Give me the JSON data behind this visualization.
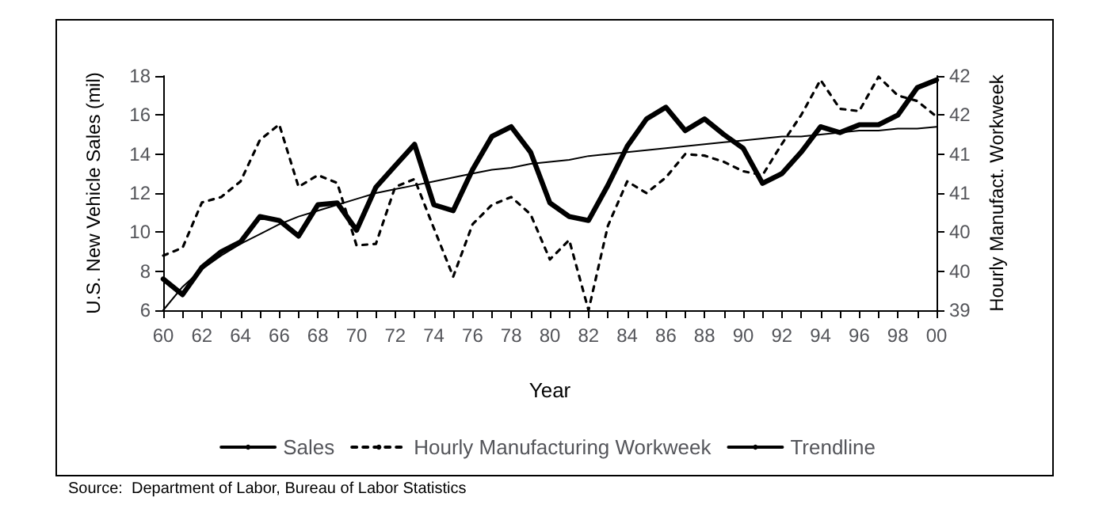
{
  "chart_data": {
    "type": "line",
    "xlabel": "Year",
    "ylabel": "U.S. New Vehicle Sales (mil)",
    "y2label": "Hourly Manufact. Workweek",
    "categories": [
      "60",
      null,
      "62",
      null,
      "64",
      null,
      "66",
      null,
      "68",
      null,
      "70",
      null,
      "72",
      null,
      "74",
      null,
      "76",
      null,
      "78",
      null,
      "80",
      null,
      "82",
      null,
      "84",
      null,
      "86",
      null,
      "88",
      null,
      "90",
      null,
      "92",
      null,
      "94",
      null,
      "96",
      null,
      "98",
      null,
      "00"
    ],
    "series": [
      {
        "name": "Sales",
        "color": "#000000",
        "line_style": "solid",
        "values": [
          7.6,
          6.8,
          8.2,
          9.0,
          9.5,
          10.8,
          10.6,
          9.8,
          11.4,
          11.5,
          10.1,
          12.3,
          13.4,
          14.5,
          11.4,
          11.1,
          13.2,
          14.9,
          15.4,
          14.1,
          11.5,
          10.8,
          10.6,
          12.4,
          14.4,
          15.8,
          16.4,
          15.2,
          15.8,
          15.0,
          14.3,
          12.5,
          13.0,
          14.1,
          15.4,
          15.1,
          15.5,
          15.5,
          16.0,
          17.4,
          17.8
        ]
      },
      {
        "name": "Hourly Manufacturing Workweek",
        "color": "#000000",
        "line_style": "dashed",
        "axis": "y2",
        "values": [
          39.7,
          39.8,
          40.38,
          40.45,
          40.65,
          41.18,
          41.38,
          40.58,
          40.73,
          40.63,
          39.83,
          39.85,
          40.58,
          40.68,
          40.05,
          39.43,
          40.1,
          40.35,
          40.45,
          40.23,
          39.65,
          39.9,
          39.0,
          40.08,
          40.65,
          40.5,
          40.7,
          41.0,
          40.98,
          40.9,
          40.78,
          40.73,
          41.13,
          41.5,
          41.95,
          41.58,
          41.55,
          41.99,
          41.75,
          41.68,
          41.48
        ]
      },
      {
        "name": "Trendline",
        "color": "#000000",
        "line_style": "solid",
        "values": [
          6.0,
          7.2,
          8.1,
          8.8,
          9.4,
          9.9,
          10.4,
          10.8,
          11.1,
          11.4,
          11.7,
          12.0,
          12.2,
          12.4,
          12.6,
          12.8,
          13.0,
          13.2,
          13.3,
          13.5,
          13.6,
          13.7,
          13.9,
          14.0,
          14.1,
          14.2,
          14.3,
          14.4,
          14.5,
          14.6,
          14.7,
          14.8,
          14.9,
          14.9,
          15.0,
          15.1,
          15.2,
          15.2,
          15.3,
          15.3,
          15.4
        ]
      }
    ],
    "ylim": [
      6,
      18
    ],
    "yticks": [
      6,
      8,
      10,
      12,
      14,
      16,
      18
    ],
    "y2lim": [
      39,
      42
    ],
    "y2ticks": [
      39,
      {
        "value": 39.5,
        "label": "40"
      },
      40,
      {
        "value": 40.5,
        "label": "41"
      },
      41,
      {
        "value": 41.5,
        "label": "42"
      },
      42
    ],
    "grid": false,
    "legend": "bottom",
    "marker": "none",
    "annotations": [
      "Source:  Department of Labor, Bureau of Labor Statistics"
    ]
  }
}
